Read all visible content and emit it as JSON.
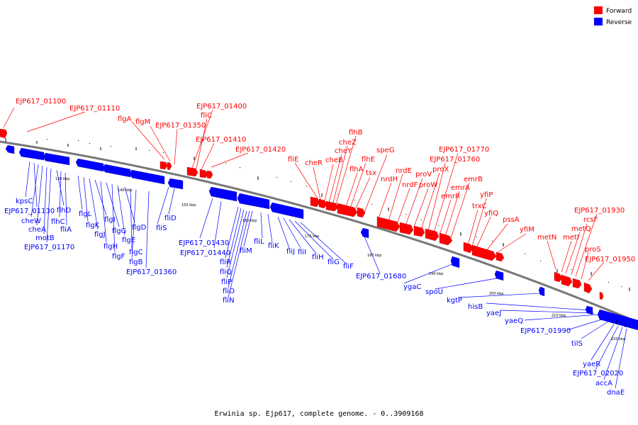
{
  "caption": "Erwinia sp. Ejp617, complete genome. - 0..3909168",
  "legend": {
    "forward": {
      "label": "Forward",
      "color": "#ff0000"
    },
    "reverse": {
      "label": "Reverse",
      "color": "#0000ff"
    }
  },
  "kbp_ticks": [
    "130 kbp",
    "140 kbp",
    "150 kbp",
    "160 kbp",
    "170 kbp",
    "180 kbp",
    "190 kbp",
    "200 kbp",
    "210 kbp",
    "220 kbp"
  ],
  "forward_genes": [
    "EJP617_01100",
    "EJP617_01110",
    "flgA",
    "flgM",
    "EJP617_01350",
    "EJP617_01400",
    "fliC",
    "EJP617_01410",
    "EJP617_01420",
    "fliE",
    "cheR",
    "cheB",
    "cheY",
    "cheZ",
    "flhB",
    "flhA",
    "flhE",
    "tsx",
    "speG",
    "nrdH",
    "nrdE",
    "nrdF",
    "proV",
    "proW",
    "proX",
    "EJP617_01760",
    "EJP617_01770",
    "emrR",
    "emrA",
    "emrB",
    "trxC",
    "yfiP",
    "yfiQ",
    "pssA",
    "yfiM",
    "metN",
    "metI",
    "metQ",
    "rcsF",
    "EJP617_01930",
    "proS",
    "EJP617_01950"
  ],
  "reverse_genes": [
    "kpsC",
    "EJP617_01130",
    "cheW",
    "cheA",
    "motB",
    "EJP617_01170",
    "flhD",
    "flhC",
    "fliA",
    "flgL",
    "flgK",
    "flgJ",
    "flgI",
    "flgH",
    "flgG",
    "flgF",
    "flgE",
    "flgD",
    "flgC",
    "flgB",
    "EJP617_01360",
    "fliS",
    "fliD",
    "EJP617_01430",
    "EJP617_01440",
    "fliR",
    "fliQ",
    "fliP",
    "fliO",
    "fliN",
    "fliM",
    "fliL",
    "fliK",
    "fliJ",
    "fliI",
    "fliH",
    "fliG",
    "fliF",
    "EJP617_01680",
    "ygaC",
    "spoU",
    "kgtP",
    "hisB",
    "yaeJ",
    "yaeQ",
    "EJP617_01990",
    "tilS",
    "yaeR",
    "EJP617_02020",
    "accA",
    "dnaE"
  ]
}
